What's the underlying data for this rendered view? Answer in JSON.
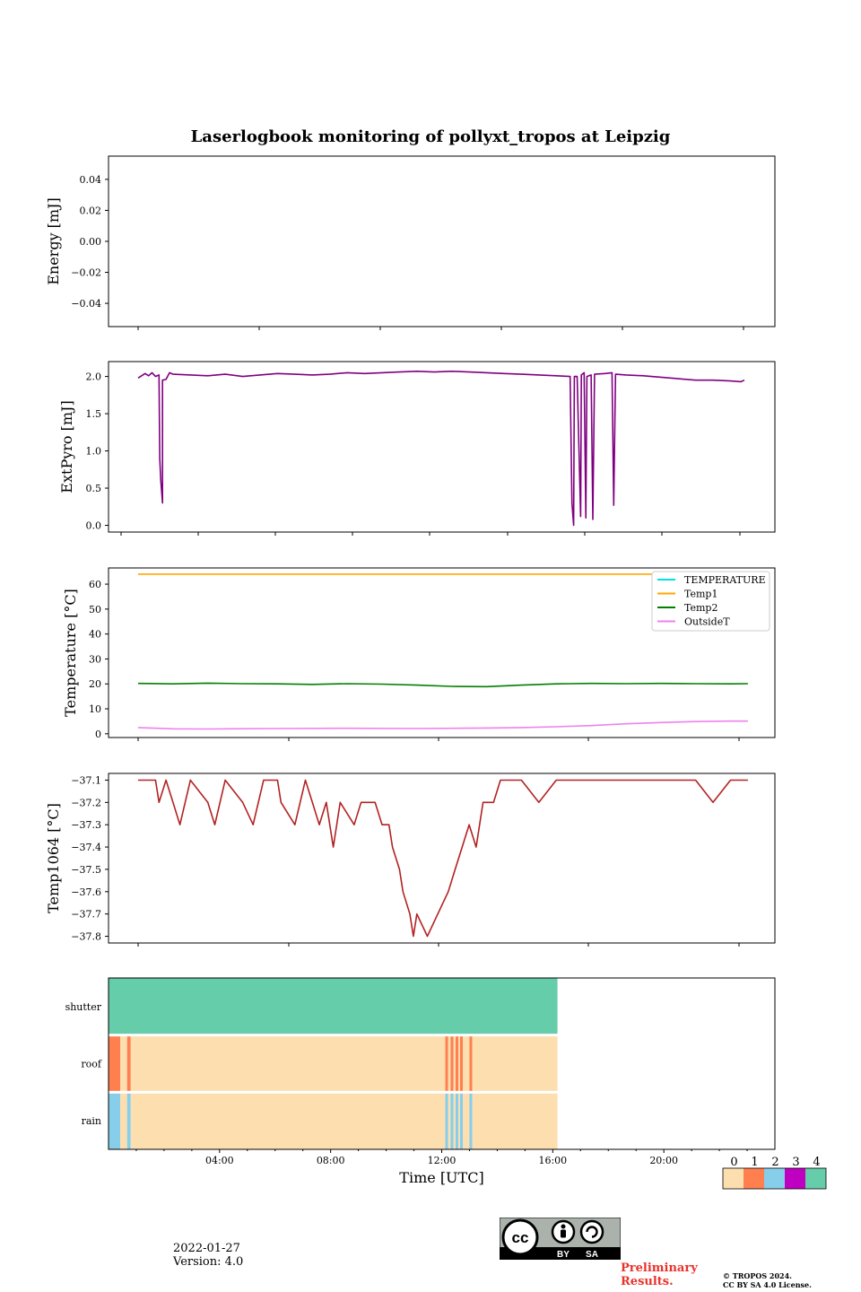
{
  "title": "Laserlogbook monitoring of pollyxt_tropos at Leipzig",
  "footer": {
    "date": "2022-01-27",
    "version": "Version: 4.0",
    "preliminary_line1": "Preliminary",
    "preliminary_line2": "Results.",
    "copyright_line1": "© TROPOS 2024.",
    "copyright_line2": "CC BY SA 4.0 License.",
    "license_badge": {
      "cc": "cc",
      "by": "BY",
      "sa": "SA"
    }
  },
  "colorbar": {
    "labels": [
      "0",
      "1",
      "2",
      "3",
      "4"
    ],
    "colors": [
      "#fddeaf",
      "#ff7f4f",
      "#87ceeb",
      "#c000c0",
      "#66cdaa"
    ]
  },
  "chart_data": [
    {
      "type": "line",
      "name": "energy",
      "ylabel": "Energy [mJ]",
      "ylim": [
        -0.055,
        0.055
      ],
      "yticks": [
        0.04,
        0.02,
        0.0,
        -0.02,
        -0.04
      ],
      "ytick_labels": [
        "0.04",
        "0.02",
        "0.00",
        "−0.02",
        "−0.04"
      ],
      "series": []
    },
    {
      "type": "line",
      "name": "extpyro",
      "ylabel": "ExtPyro [mJ]",
      "ylim": [
        -0.09,
        2.2
      ],
      "yticks": [
        2.0,
        1.5,
        1.0,
        0.5,
        0.0
      ],
      "ytick_labels": [
        "2.0",
        "1.5",
        "1.0",
        "0.5",
        "0.0"
      ],
      "series": [
        {
          "name": "ExtPyro",
          "color": "#800080",
          "points": [
            [
              0.0,
              1.98
            ],
            [
              0.2,
              2.04
            ],
            [
              0.3,
              2.01
            ],
            [
              0.4,
              2.05
            ],
            [
              0.5,
              2.0
            ],
            [
              0.6,
              2.02
            ],
            [
              0.62,
              0.9
            ],
            [
              0.65,
              0.6
            ],
            [
              0.7,
              0.3
            ],
            [
              0.7,
              1.95
            ],
            [
              0.8,
              1.96
            ],
            [
              0.9,
              2.05
            ],
            [
              1.0,
              2.03
            ],
            [
              1.5,
              2.02
            ],
            [
              2.0,
              2.01
            ],
            [
              2.5,
              2.03
            ],
            [
              3.0,
              2.0
            ],
            [
              3.5,
              2.02
            ],
            [
              4.0,
              2.04
            ],
            [
              4.5,
              2.03
            ],
            [
              5.0,
              2.02
            ],
            [
              5.5,
              2.03
            ],
            [
              6.0,
              2.05
            ],
            [
              6.5,
              2.04
            ],
            [
              7.0,
              2.05
            ],
            [
              7.5,
              2.06
            ],
            [
              8.0,
              2.07
            ],
            [
              8.5,
              2.06
            ],
            [
              9.0,
              2.07
            ],
            [
              9.5,
              2.06
            ],
            [
              10.0,
              2.05
            ],
            [
              10.5,
              2.04
            ],
            [
              11.0,
              2.03
            ],
            [
              11.5,
              2.02
            ],
            [
              12.0,
              2.01
            ],
            [
              12.4,
              2.0
            ],
            [
              12.45,
              0.3
            ],
            [
              12.5,
              0.0
            ],
            [
              12.52,
              2.0
            ],
            [
              12.6,
              2.0
            ],
            [
              12.7,
              0.12
            ],
            [
              12.72,
              2.02
            ],
            [
              12.8,
              2.05
            ],
            [
              12.85,
              0.1
            ],
            [
              12.88,
              2.0
            ],
            [
              13.0,
              2.02
            ],
            [
              13.05,
              0.08
            ],
            [
              13.1,
              2.03
            ],
            [
              13.4,
              2.04
            ],
            [
              13.6,
              2.05
            ],
            [
              13.65,
              0.27
            ],
            [
              13.7,
              2.03
            ],
            [
              14.0,
              2.02
            ],
            [
              14.5,
              2.01
            ],
            [
              15.0,
              1.99
            ],
            [
              15.5,
              1.97
            ],
            [
              16.0,
              1.95
            ],
            [
              16.5,
              1.95
            ],
            [
              17.0,
              1.94
            ],
            [
              17.3,
              1.93
            ],
            [
              17.4,
              1.95
            ]
          ]
        }
      ]
    },
    {
      "type": "line",
      "name": "temperature",
      "ylabel": "Temperature [°C]",
      "ylim": [
        -1.5,
        66.5
      ],
      "yticks": [
        60,
        50,
        40,
        30,
        20,
        10,
        0
      ],
      "ytick_labels": [
        "60",
        "50",
        "40",
        "30",
        "20",
        "10",
        "0"
      ],
      "legend": "top-right",
      "series": [
        {
          "name": "TEMPERATURE",
          "color": "#00e0e0",
          "points": []
        },
        {
          "name": "Temp1",
          "color": "#ffa500",
          "points": [
            [
              0.0,
              64.0
            ],
            [
              16.0,
              64.0
            ]
          ]
        },
        {
          "name": "Temp2",
          "color": "#008000",
          "points": [
            [
              0.0,
              20.2
            ],
            [
              1.0,
              20.0
            ],
            [
              2.0,
              20.3
            ],
            [
              3.0,
              20.1
            ],
            [
              4.0,
              20.0
            ],
            [
              5.0,
              19.8
            ],
            [
              6.0,
              20.1
            ],
            [
              7.0,
              19.9
            ],
            [
              8.0,
              19.5
            ],
            [
              9.0,
              19.0
            ],
            [
              10.0,
              18.9
            ],
            [
              11.0,
              19.5
            ],
            [
              12.0,
              20.0
            ],
            [
              13.0,
              20.2
            ],
            [
              14.0,
              20.1
            ],
            [
              15.0,
              20.2
            ],
            [
              16.0,
              20.1
            ],
            [
              17.0,
              20.0
            ],
            [
              17.5,
              20.1
            ]
          ]
        },
        {
          "name": "OutsideT",
          "color": "#ee82ee",
          "points": [
            [
              0.0,
              2.5
            ],
            [
              1.0,
              2.0
            ],
            [
              2.0,
              1.9
            ],
            [
              4.0,
              2.1
            ],
            [
              6.0,
              2.2
            ],
            [
              8.0,
              2.1
            ],
            [
              10.0,
              2.3
            ],
            [
              11.0,
              2.5
            ],
            [
              12.0,
              2.8
            ],
            [
              13.0,
              3.3
            ],
            [
              14.0,
              4.0
            ],
            [
              15.0,
              4.5
            ],
            [
              16.0,
              4.9
            ],
            [
              17.0,
              5.1
            ],
            [
              17.5,
              5.1
            ]
          ]
        }
      ]
    },
    {
      "type": "line",
      "name": "temp1064",
      "ylabel": "Temp1064 [°C]",
      "ylim": [
        -37.83,
        -37.07
      ],
      "yticks": [
        -37.1,
        -37.2,
        -37.3,
        -37.4,
        -37.5,
        -37.6,
        -37.7,
        -37.8
      ],
      "ytick_labels": [
        "−37.1",
        "−37.2",
        "−37.3",
        "−37.4",
        "−37.5",
        "−37.6",
        "−37.7",
        "−37.8"
      ],
      "series": [
        {
          "name": "Temp1064",
          "color": "#b22222",
          "points": [
            [
              0.0,
              -37.1
            ],
            [
              0.5,
              -37.1
            ],
            [
              0.6,
              -37.2
            ],
            [
              0.8,
              -37.1
            ],
            [
              1.0,
              -37.2
            ],
            [
              1.2,
              -37.3
            ],
            [
              1.5,
              -37.1
            ],
            [
              2.0,
              -37.2
            ],
            [
              2.2,
              -37.3
            ],
            [
              2.5,
              -37.1
            ],
            [
              3.0,
              -37.2
            ],
            [
              3.3,
              -37.3
            ],
            [
              3.6,
              -37.1
            ],
            [
              4.0,
              -37.1
            ],
            [
              4.1,
              -37.2
            ],
            [
              4.5,
              -37.3
            ],
            [
              4.8,
              -37.1
            ],
            [
              5.0,
              -37.2
            ],
            [
              5.2,
              -37.3
            ],
            [
              5.4,
              -37.2
            ],
            [
              5.6,
              -37.4
            ],
            [
              5.8,
              -37.2
            ],
            [
              6.2,
              -37.3
            ],
            [
              6.4,
              -37.2
            ],
            [
              6.8,
              -37.2
            ],
            [
              7.0,
              -37.3
            ],
            [
              7.2,
              -37.3
            ],
            [
              7.3,
              -37.4
            ],
            [
              7.5,
              -37.5
            ],
            [
              7.6,
              -37.6
            ],
            [
              7.8,
              -37.7
            ],
            [
              7.9,
              -37.8
            ],
            [
              8.0,
              -37.7
            ],
            [
              8.3,
              -37.8
            ],
            [
              8.6,
              -37.7
            ],
            [
              8.9,
              -37.6
            ],
            [
              9.1,
              -37.5
            ],
            [
              9.3,
              -37.4
            ],
            [
              9.5,
              -37.3
            ],
            [
              9.7,
              -37.4
            ],
            [
              9.9,
              -37.2
            ],
            [
              10.2,
              -37.2
            ],
            [
              10.4,
              -37.1
            ],
            [
              11.0,
              -37.1
            ],
            [
              11.5,
              -37.2
            ],
            [
              12.0,
              -37.1
            ],
            [
              14.0,
              -37.1
            ],
            [
              14.5,
              -37.1
            ],
            [
              15.0,
              -37.1
            ],
            [
              16.0,
              -37.1
            ],
            [
              16.5,
              -37.2
            ],
            [
              17.0,
              -37.1
            ],
            [
              17.5,
              -37.1
            ]
          ]
        }
      ]
    },
    {
      "type": "heatmap",
      "name": "status",
      "rows": [
        "shutter",
        "roof",
        "rain"
      ],
      "colors": [
        "#fddeaf",
        "#ff7f4f",
        "#87ceeb",
        "#c000c0",
        "#66cdaa"
      ],
      "segments": {
        "shutter": [
          [
            0.0,
            16.17,
            4
          ]
        ],
        "roof": [
          [
            0.0,
            0.42,
            1
          ],
          [
            0.42,
            0.67,
            0
          ],
          [
            0.67,
            0.8,
            1
          ],
          [
            0.8,
            12.13,
            0
          ],
          [
            12.13,
            12.23,
            1
          ],
          [
            12.23,
            12.32,
            0
          ],
          [
            12.32,
            12.42,
            1
          ],
          [
            12.42,
            12.5,
            0
          ],
          [
            12.5,
            12.6,
            1
          ],
          [
            12.6,
            12.66,
            0
          ],
          [
            12.66,
            12.76,
            1
          ],
          [
            12.76,
            13.0,
            0
          ],
          [
            13.0,
            13.1,
            1
          ],
          [
            13.1,
            16.17,
            0
          ]
        ],
        "rain": [
          [
            0.0,
            0.42,
            2
          ],
          [
            0.42,
            0.67,
            0
          ],
          [
            0.67,
            0.8,
            2
          ],
          [
            0.8,
            12.13,
            0
          ],
          [
            12.13,
            12.23,
            2
          ],
          [
            12.23,
            12.32,
            0
          ],
          [
            12.32,
            12.42,
            2
          ],
          [
            12.42,
            12.5,
            0
          ],
          [
            12.5,
            12.6,
            2
          ],
          [
            12.6,
            12.66,
            0
          ],
          [
            12.66,
            12.76,
            2
          ],
          [
            12.76,
            13.0,
            0
          ],
          [
            13.0,
            13.1,
            2
          ],
          [
            13.1,
            16.17,
            0
          ]
        ]
      },
      "xlabel": "Time [UTC]",
      "xlim": [
        0,
        24
      ],
      "xticks": [
        4,
        8,
        12,
        16,
        20
      ],
      "xtick_labels": [
        "04:00",
        "08:00",
        "12:00",
        "16:00",
        "20:00"
      ]
    }
  ]
}
